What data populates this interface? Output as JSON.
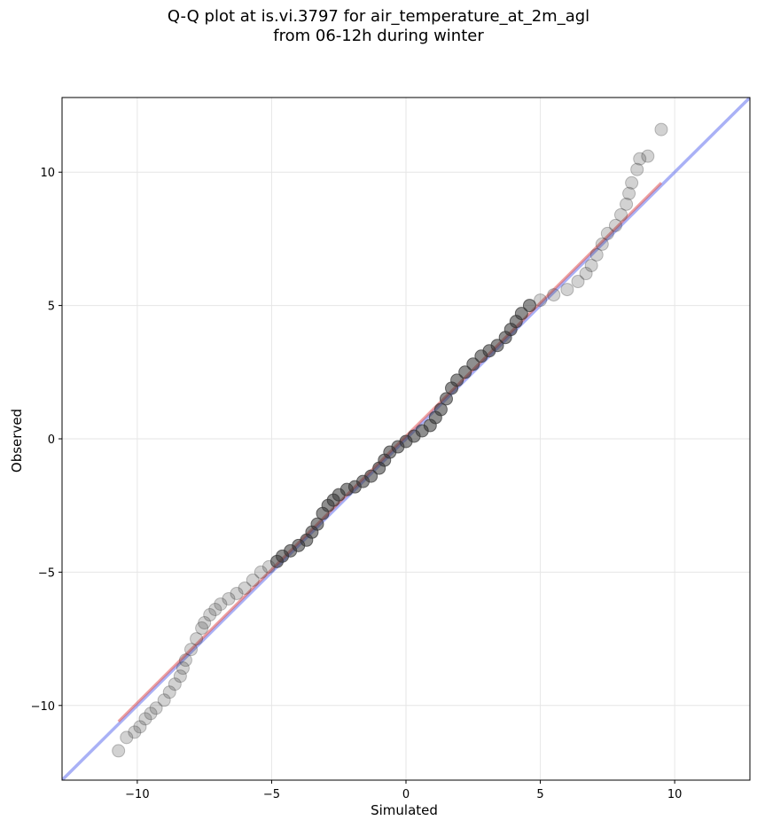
{
  "chart_data": {
    "type": "scatter",
    "title": "Q-Q plot at is.vi.3797 for air_temperature_at_2m_agl",
    "subtitle": "from 06-12h during winter",
    "xlabel": "Simulated",
    "ylabel": "Observed",
    "xlim": [
      -12.8,
      12.8
    ],
    "ylim": [
      -12.8,
      12.8
    ],
    "xticks": [
      -10,
      -5,
      0,
      5,
      10
    ],
    "yticks": [
      -10,
      -5,
      0,
      5,
      10
    ],
    "xtick_labels": [
      "−10",
      "−5",
      "0",
      "5",
      "10"
    ],
    "ytick_labels": [
      "−10",
      "−5",
      "0",
      "5",
      "10"
    ],
    "grid": true,
    "colors": {
      "points": "#333333",
      "identity_line": "#6f7df0",
      "fit_line": "#e0504f"
    },
    "series": [
      {
        "type": "scatter",
        "values": [
          [
            -10.7,
            -11.7
          ],
          [
            -10.4,
            -11.2
          ],
          [
            -10.1,
            -11.0
          ],
          [
            -9.9,
            -10.8
          ],
          [
            -9.7,
            -10.5
          ],
          [
            -9.5,
            -10.3
          ],
          [
            -9.3,
            -10.1
          ],
          [
            -9.0,
            -9.8
          ],
          [
            -8.8,
            -9.5
          ],
          [
            -8.6,
            -9.2
          ],
          [
            -8.4,
            -8.9
          ],
          [
            -8.3,
            -8.6
          ],
          [
            -8.2,
            -8.3
          ],
          [
            -8.0,
            -7.9
          ],
          [
            -7.8,
            -7.5
          ],
          [
            -7.6,
            -7.1
          ],
          [
            -7.5,
            -6.9
          ],
          [
            -7.3,
            -6.6
          ],
          [
            -7.1,
            -6.4
          ],
          [
            -6.9,
            -6.2
          ],
          [
            -6.6,
            -6.0
          ],
          [
            -6.3,
            -5.8
          ],
          [
            -6.0,
            -5.6
          ],
          [
            -5.7,
            -5.3
          ],
          [
            -5.4,
            -5.0
          ],
          [
            -5.1,
            -4.8
          ],
          [
            -4.8,
            -4.6
          ],
          [
            -4.6,
            -4.4
          ],
          [
            -4.3,
            -4.2
          ],
          [
            -4.0,
            -4.0
          ],
          [
            -3.7,
            -3.8
          ],
          [
            -3.5,
            -3.5
          ],
          [
            -3.3,
            -3.2
          ],
          [
            -3.1,
            -2.8
          ],
          [
            -2.9,
            -2.5
          ],
          [
            -2.7,
            -2.3
          ],
          [
            -2.5,
            -2.1
          ],
          [
            -2.2,
            -1.9
          ],
          [
            -1.9,
            -1.8
          ],
          [
            -1.6,
            -1.6
          ],
          [
            -1.3,
            -1.4
          ],
          [
            -1.0,
            -1.1
          ],
          [
            -0.8,
            -0.8
          ],
          [
            -0.6,
            -0.5
          ],
          [
            -0.3,
            -0.3
          ],
          [
            0.0,
            -0.1
          ],
          [
            0.3,
            0.1
          ],
          [
            0.6,
            0.3
          ],
          [
            0.9,
            0.5
          ],
          [
            1.1,
            0.8
          ],
          [
            1.3,
            1.1
          ],
          [
            1.5,
            1.5
          ],
          [
            1.7,
            1.9
          ],
          [
            1.9,
            2.2
          ],
          [
            2.2,
            2.5
          ],
          [
            2.5,
            2.8
          ],
          [
            2.8,
            3.1
          ],
          [
            3.1,
            3.3
          ],
          [
            3.4,
            3.5
          ],
          [
            3.7,
            3.8
          ],
          [
            3.9,
            4.1
          ],
          [
            4.1,
            4.4
          ],
          [
            4.3,
            4.7
          ],
          [
            4.6,
            5.0
          ],
          [
            5.0,
            5.2
          ],
          [
            5.5,
            5.4
          ],
          [
            6.0,
            5.6
          ],
          [
            6.4,
            5.9
          ],
          [
            6.7,
            6.2
          ],
          [
            6.9,
            6.5
          ],
          [
            7.1,
            6.9
          ],
          [
            7.3,
            7.3
          ],
          [
            7.5,
            7.7
          ],
          [
            7.8,
            8.0
          ],
          [
            8.0,
            8.4
          ],
          [
            8.2,
            8.8
          ],
          [
            8.3,
            9.2
          ],
          [
            8.4,
            9.6
          ],
          [
            8.6,
            10.1
          ],
          [
            8.7,
            10.5
          ],
          [
            9.0,
            10.6
          ],
          [
            9.5,
            11.6
          ]
        ]
      },
      {
        "type": "line",
        "values": [
          [
            -12.8,
            -12.8
          ],
          [
            12.8,
            12.8
          ]
        ]
      },
      {
        "type": "line",
        "values": [
          [
            -10.7,
            -10.6
          ],
          [
            9.5,
            9.6
          ]
        ]
      }
    ]
  }
}
